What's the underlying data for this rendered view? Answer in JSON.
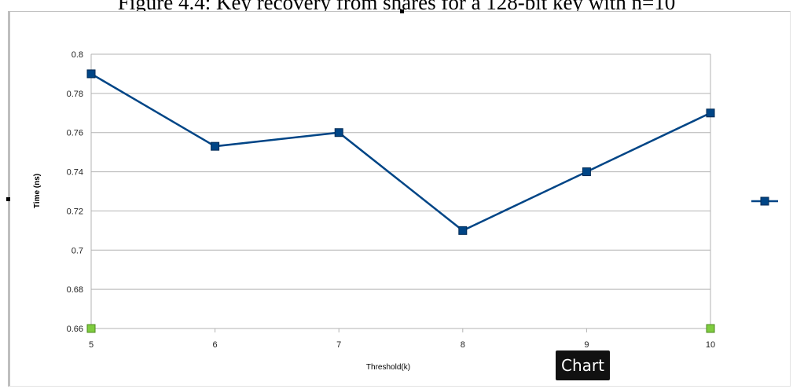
{
  "figure_caption": "Figure 4.4: Key recovery from shares for a 128-bit key with n=10",
  "tooltip": "Chart",
  "chart_data": {
    "type": "line",
    "title": "",
    "xlabel": "Threshold(k)",
    "ylabel": "Time (ns)",
    "x": [
      5,
      6,
      7,
      8,
      9,
      10
    ],
    "ylim": [
      0.66,
      0.8
    ],
    "yticks": [
      "0.66",
      "0.68",
      "0.7",
      "0.72",
      "0.74",
      "0.76",
      "0.78",
      "0.8"
    ],
    "xticks": [
      "5",
      "6",
      "7",
      "8",
      "9",
      "10"
    ],
    "grid": true,
    "legend": "right",
    "series": [
      {
        "values": [
          0.79,
          0.753,
          0.76,
          0.71,
          0.74,
          0.77
        ],
        "color": "#004586",
        "marker": "square"
      },
      {
        "x": [
          5,
          10
        ],
        "values": [
          0.66,
          0.66
        ],
        "color": "#7fcc3f",
        "marker": "square"
      }
    ]
  }
}
